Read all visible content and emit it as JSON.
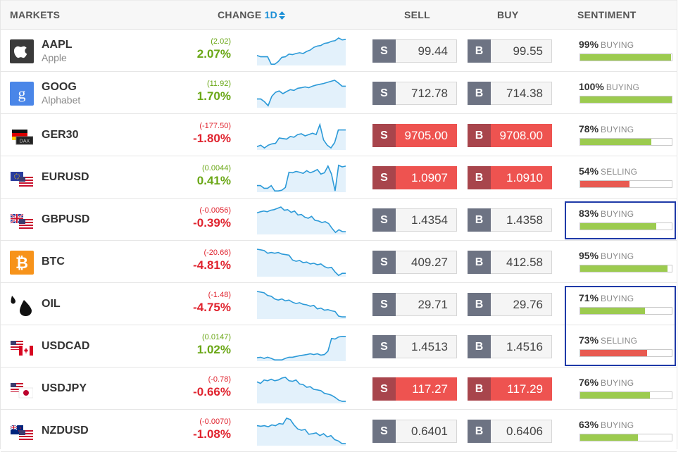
{
  "header": {
    "markets": "MARKETS",
    "change": "CHANGE",
    "period": "1D",
    "sell": "SELL",
    "buy": "BUY",
    "sentiment": "SENTIMENT"
  },
  "colors": {
    "positive": "#6aa716",
    "negative": "#e0242f",
    "buying": "#9ccb4f",
    "selling": "#e85a51",
    "accent": "#1b8fd6",
    "highlight": "#1f3aa8"
  },
  "rows": [
    {
      "symbol": "AAPL",
      "name": "Apple",
      "icon": "apple-logo-icon",
      "change_abs": "(2.02)",
      "change_pct": "2.07%",
      "dir": "pos",
      "sell": "99.44",
      "sell_tag": "S",
      "buy": "99.55",
      "buy_tag": "B",
      "hot": false,
      "sentiment_pct": "99%",
      "sentiment_label": "BUYING",
      "sentiment_dir": "buying",
      "sentiment_value": 0.99,
      "highlighted": false,
      "trend": [
        0.35,
        0.3,
        0.3,
        0.3,
        0.02,
        0.02,
        0.12,
        0.28,
        0.3,
        0.4,
        0.38,
        0.42,
        0.45,
        0.42,
        0.5,
        0.55,
        0.65,
        0.7,
        0.72,
        0.8,
        0.82,
        0.88,
        0.9,
        1.0,
        0.93,
        0.95
      ]
    },
    {
      "symbol": "GOOG",
      "name": "Alphabet",
      "icon": "google-logo-icon",
      "change_abs": "(11.92)",
      "change_pct": "1.70%",
      "dir": "pos",
      "sell": "712.78",
      "sell_tag": "S",
      "buy": "714.38",
      "buy_tag": "B",
      "hot": false,
      "sentiment_pct": "100%",
      "sentiment_label": "BUYING",
      "sentiment_dir": "buying",
      "sentiment_value": 1.0,
      "highlighted": false,
      "trend": [
        0.3,
        0.3,
        0.2,
        0.05,
        0.4,
        0.55,
        0.6,
        0.5,
        0.58,
        0.65,
        0.62,
        0.7,
        0.72,
        0.75,
        0.72,
        0.78,
        0.82,
        0.85,
        0.88,
        0.92,
        0.96,
        1.0,
        0.9,
        0.78,
        0.78
      ]
    },
    {
      "symbol": "GER30",
      "name": "",
      "icon": "german-flag-icon",
      "change_abs": "(-177.50)",
      "change_pct": "-1.80%",
      "dir": "neg",
      "sell": "9705.00",
      "sell_tag": "S",
      "buy": "9708.00",
      "buy_tag": "B",
      "hot": true,
      "sentiment_pct": "78%",
      "sentiment_label": "BUYING",
      "sentiment_dir": "buying",
      "sentiment_value": 0.78,
      "highlighted": false,
      "trend": [
        0.1,
        0.15,
        0.05,
        0.15,
        0.2,
        0.22,
        0.42,
        0.4,
        0.38,
        0.48,
        0.45,
        0.55,
        0.58,
        0.5,
        0.55,
        0.6,
        0.55,
        0.92,
        0.35,
        0.15,
        0.05,
        0.25,
        0.72,
        0.72,
        0.72
      ]
    },
    {
      "symbol": "EURUSD",
      "name": "",
      "icon": "eurusd-flag-icon",
      "change_abs": "(0.0044)",
      "change_pct": "0.41%",
      "dir": "pos",
      "sell": "1.0907",
      "sell_tag": "S",
      "buy": "1.0910",
      "buy_tag": "B",
      "hot": true,
      "sentiment_pct": "54%",
      "sentiment_label": "SELLING",
      "sentiment_dir": "selling",
      "sentiment_value": 0.54,
      "highlighted": false,
      "trend": [
        0.22,
        0.22,
        0.12,
        0.12,
        0.22,
        0.02,
        0.02,
        0.05,
        0.15,
        0.72,
        0.7,
        0.75,
        0.72,
        0.68,
        0.78,
        0.7,
        0.75,
        0.82,
        0.65,
        0.7,
        0.95,
        0.65,
        0.02,
        0.98,
        0.92,
        0.95
      ]
    },
    {
      "symbol": "GBPUSD",
      "name": "",
      "icon": "gbpusd-flag-icon",
      "change_abs": "(-0.0056)",
      "change_pct": "-0.39%",
      "dir": "neg",
      "sell": "1.4354",
      "sell_tag": "S",
      "buy": "1.4358",
      "buy_tag": "B",
      "hot": false,
      "sentiment_pct": "83%",
      "sentiment_label": "BUYING",
      "sentiment_dir": "buying",
      "sentiment_value": 0.83,
      "highlighted": true,
      "trend": [
        0.78,
        0.82,
        0.85,
        0.82,
        0.88,
        0.9,
        0.95,
        1.0,
        0.88,
        0.9,
        0.8,
        0.85,
        0.7,
        0.72,
        0.62,
        0.58,
        0.65,
        0.5,
        0.48,
        0.42,
        0.45,
        0.38,
        0.2,
        0.05,
        0.15,
        0.08,
        0.08
      ]
    },
    {
      "symbol": "BTC",
      "name": "",
      "icon": "bitcoin-logo-icon",
      "change_abs": "(-20.66)",
      "change_pct": "-4.81%",
      "dir": "neg",
      "sell": "409.27",
      "sell_tag": "S",
      "buy": "412.58",
      "buy_tag": "B",
      "hot": false,
      "sentiment_pct": "95%",
      "sentiment_label": "BUYING",
      "sentiment_dir": "buying",
      "sentiment_value": 0.95,
      "highlighted": false,
      "trend": [
        1.0,
        0.98,
        0.95,
        0.85,
        0.88,
        0.85,
        0.88,
        0.82,
        0.8,
        0.78,
        0.6,
        0.55,
        0.58,
        0.5,
        0.52,
        0.45,
        0.48,
        0.42,
        0.45,
        0.35,
        0.3,
        0.32,
        0.15,
        0.02,
        0.1,
        0.1
      ]
    },
    {
      "symbol": "OIL",
      "name": "",
      "icon": "oil-drop-icon",
      "change_abs": "(-1.48)",
      "change_pct": "-4.75%",
      "dir": "neg",
      "sell": "29.71",
      "sell_tag": "S",
      "buy": "29.76",
      "buy_tag": "B",
      "hot": false,
      "sentiment_pct": "71%",
      "sentiment_label": "BUYING",
      "sentiment_dir": "buying",
      "sentiment_value": 0.71,
      "highlighted": true,
      "trend": [
        1.0,
        0.98,
        0.95,
        0.85,
        0.82,
        0.72,
        0.68,
        0.72,
        0.65,
        0.68,
        0.6,
        0.55,
        0.58,
        0.52,
        0.5,
        0.45,
        0.48,
        0.35,
        0.38,
        0.3,
        0.32,
        0.28,
        0.25,
        0.08,
        0.05,
        0.05
      ]
    },
    {
      "symbol": "USDCAD",
      "name": "",
      "icon": "usdcad-flag-icon",
      "change_abs": "(0.0147)",
      "change_pct": "1.02%",
      "dir": "pos",
      "sell": "1.4513",
      "sell_tag": "S",
      "buy": "1.4516",
      "buy_tag": "B",
      "hot": false,
      "sentiment_pct": "73%",
      "sentiment_label": "SELLING",
      "sentiment_dir": "selling",
      "sentiment_value": 0.73,
      "highlighted": true,
      "trend": [
        0.1,
        0.12,
        0.08,
        0.12,
        0.08,
        0.02,
        0.02,
        0.02,
        0.08,
        0.12,
        0.12,
        0.15,
        0.18,
        0.2,
        0.22,
        0.25,
        0.22,
        0.25,
        0.2,
        0.22,
        0.35,
        0.82,
        0.8,
        0.88,
        0.9,
        0.9
      ]
    },
    {
      "symbol": "USDJPY",
      "name": "",
      "icon": "usdjpy-flag-icon",
      "change_abs": "(-0.78)",
      "change_pct": "-0.66%",
      "dir": "neg",
      "sell": "117.27",
      "sell_tag": "S",
      "buy": "117.29",
      "buy_tag": "B",
      "hot": true,
      "sentiment_pct": "76%",
      "sentiment_label": "BUYING",
      "sentiment_dir": "buying",
      "sentiment_value": 0.76,
      "highlighted": false,
      "trend": [
        0.78,
        0.72,
        0.85,
        0.82,
        0.88,
        0.82,
        0.85,
        0.92,
        0.95,
        0.82,
        0.8,
        0.85,
        0.7,
        0.68,
        0.58,
        0.6,
        0.5,
        0.48,
        0.45,
        0.35,
        0.32,
        0.28,
        0.2,
        0.1,
        0.05,
        0.05
      ]
    },
    {
      "symbol": "NZDUSD",
      "name": "",
      "icon": "nzdusd-flag-icon",
      "change_abs": "(-0.0070)",
      "change_pct": "-1.08%",
      "dir": "neg",
      "sell": "0.6401",
      "sell_tag": "S",
      "buy": "0.6406",
      "buy_tag": "B",
      "hot": false,
      "sentiment_pct": "63%",
      "sentiment_label": "BUYING",
      "sentiment_dir": "buying",
      "sentiment_value": 0.63,
      "highlighted": false,
      "trend": [
        0.72,
        0.7,
        0.72,
        0.68,
        0.75,
        0.72,
        0.8,
        0.78,
        1.0,
        0.95,
        0.75,
        0.6,
        0.55,
        0.58,
        0.4,
        0.42,
        0.45,
        0.35,
        0.42,
        0.3,
        0.35,
        0.2,
        0.15,
        0.05,
        0.05
      ]
    }
  ]
}
